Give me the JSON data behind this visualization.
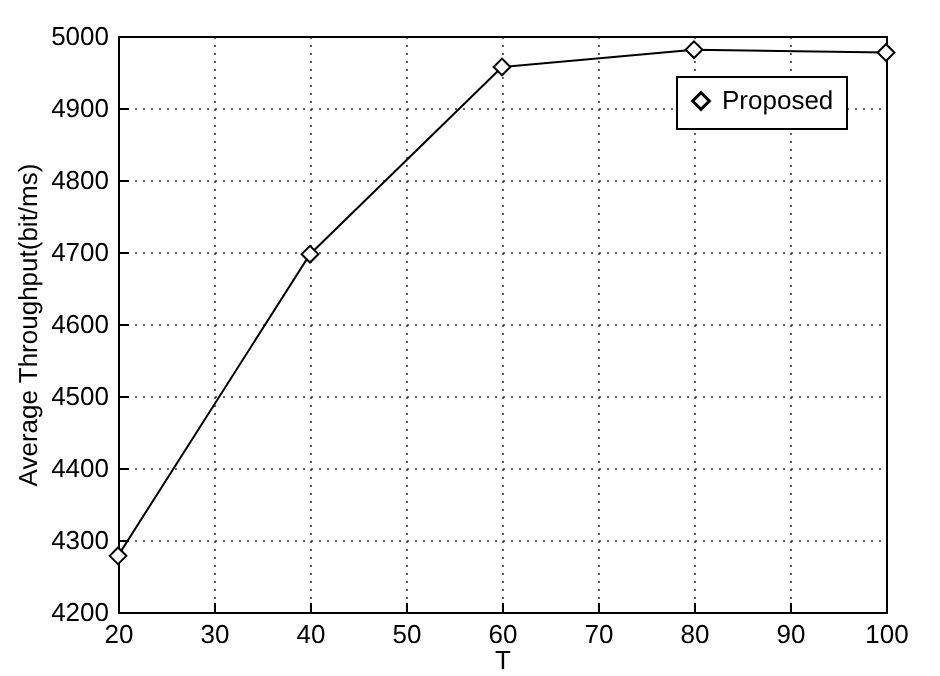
{
  "chart_data": {
    "type": "line",
    "xlabel": "T",
    "ylabel": "Average Throughput(bit/ms)",
    "x": [
      20,
      40,
      60,
      80,
      100
    ],
    "series": [
      {
        "name": "Proposed",
        "color": "#000000",
        "values": [
          4278,
          4697,
          4957,
          4981,
          4977
        ]
      }
    ],
    "xlim": [
      20,
      100
    ],
    "xticks": [
      20,
      30,
      40,
      50,
      60,
      70,
      80,
      90,
      100
    ],
    "ylim": [
      4200,
      5000
    ],
    "yticks": [
      4200,
      4300,
      4400,
      4500,
      4600,
      4700,
      4800,
      4900,
      5000
    ],
    "grid": true,
    "legend": "top right",
    "marker": "diamond",
    "line_style": "solid"
  }
}
